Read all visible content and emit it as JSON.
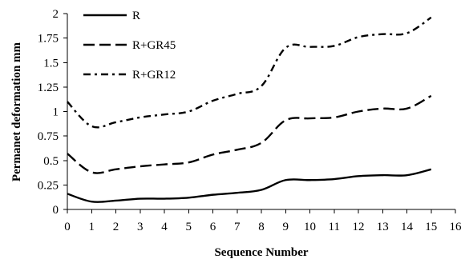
{
  "chart_data": {
    "type": "line",
    "title": "",
    "xlabel": "Sequence Number",
    "ylabel": "Permanet deformation mm",
    "xlim": [
      0,
      16
    ],
    "ylim": [
      0,
      2
    ],
    "x_ticks": [
      0,
      1,
      2,
      3,
      4,
      5,
      6,
      7,
      8,
      9,
      10,
      11,
      12,
      13,
      14,
      15,
      16
    ],
    "y_ticks": [
      0,
      0.25,
      0.5,
      0.75,
      1,
      1.25,
      1.5,
      1.75,
      2
    ],
    "y_tick_labels": [
      "0",
      "0.25",
      "0.5",
      "0.75",
      "1",
      "1.25",
      "1.5",
      "1.75",
      "2"
    ],
    "grid": false,
    "legend_position": "top-left",
    "x": [
      0,
      1,
      2,
      3,
      4,
      5,
      6,
      7,
      8,
      9,
      10,
      11,
      12,
      13,
      14,
      15
    ],
    "series": [
      {
        "name": "R",
        "style": "solid",
        "values": [
          0.16,
          0.08,
          0.09,
          0.11,
          0.11,
          0.12,
          0.15,
          0.17,
          0.2,
          0.3,
          0.3,
          0.31,
          0.34,
          0.35,
          0.35,
          0.41
        ]
      },
      {
        "name": "R+GR45",
        "style": "dash",
        "values": [
          0.57,
          0.38,
          0.41,
          0.44,
          0.46,
          0.48,
          0.56,
          0.61,
          0.68,
          0.91,
          0.93,
          0.94,
          1.0,
          1.03,
          1.03,
          1.16
        ]
      },
      {
        "name": "R+GR12",
        "style": "dashdot",
        "values": [
          1.1,
          0.85,
          0.89,
          0.94,
          0.97,
          1.0,
          1.11,
          1.18,
          1.26,
          1.65,
          1.66,
          1.67,
          1.76,
          1.79,
          1.8,
          1.96
        ]
      }
    ],
    "line_color": "#000000"
  }
}
